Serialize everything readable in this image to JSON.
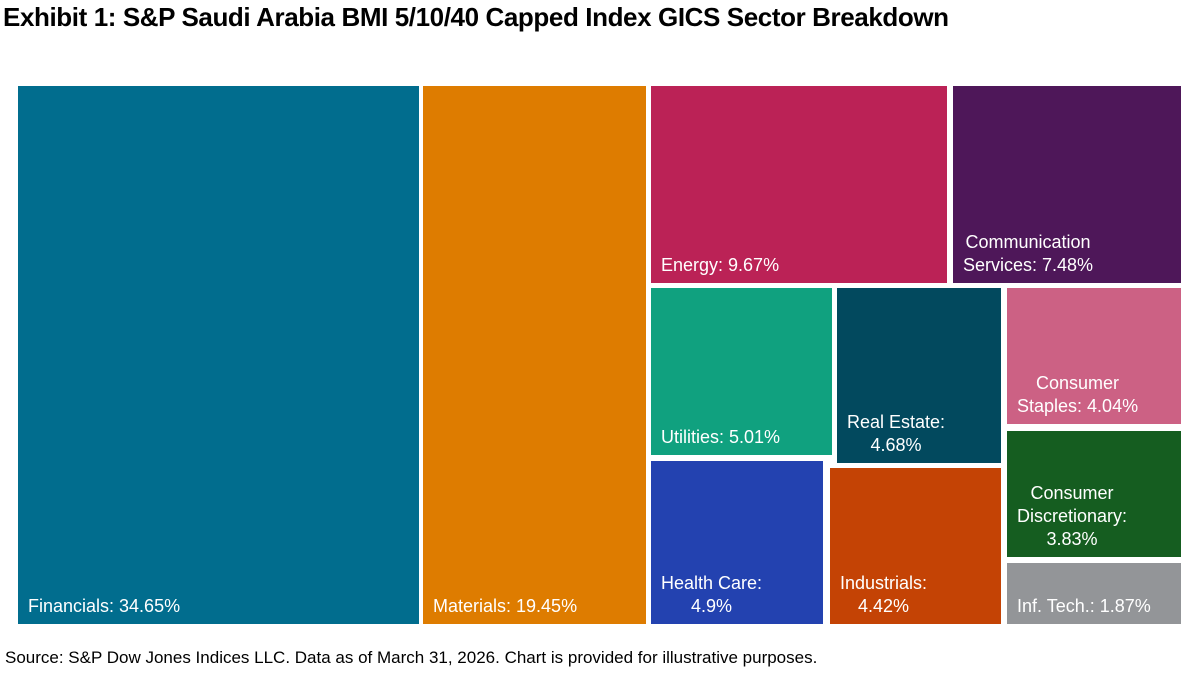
{
  "title": "Exhibit 1: S&P Saudi Arabia BMI 5/10/40 Capped Index GICS Sector Breakdown",
  "source_note": "Source: S&P Dow Jones Indices LLC. Data as of March 31, 2026. Chart is provided for illustrative purposes.",
  "colors": {
    "background": "#FFFFFF",
    "title_text": "#000000",
    "label_text": "#FFFFFF"
  },
  "chart_data": {
    "type": "treemap",
    "title": "Exhibit 1: S&P Saudi Arabia BMI 5/10/40 Capped Index GICS Sector Breakdown",
    "unit": "%",
    "sectors": [
      {
        "id": "financials",
        "name": "Financials",
        "value": 34.65,
        "color": "#016D8E",
        "label": "Financials: 34.65%",
        "label_lines": [
          "Financials: 34.65%"
        ]
      },
      {
        "id": "materials",
        "name": "Materials",
        "value": 19.45,
        "color": "#DE7C00",
        "label": "Materials: 19.45%",
        "label_lines": [
          "Materials: 19.45%"
        ]
      },
      {
        "id": "energy",
        "name": "Energy",
        "value": 9.67,
        "color": "#BB2256",
        "label": "Energy: 9.67%",
        "label_lines": [
          "Energy: 9.67%"
        ]
      },
      {
        "id": "communication_services",
        "name": "Communication Services",
        "value": 7.48,
        "color": "#4E1759",
        "label": "Communication Services: 7.48%",
        "label_lines": [
          "Communication",
          "Services: 7.48%"
        ]
      },
      {
        "id": "utilities",
        "name": "Utilities",
        "value": 5.01,
        "color": "#10A17F",
        "label": "Utilities: 5.01%",
        "label_lines": [
          "Utilities: 5.01%"
        ]
      },
      {
        "id": "real_estate",
        "name": "Real Estate",
        "value": 4.68,
        "color": "#02495E",
        "label": "Real Estate: 4.68%",
        "label_lines": [
          "Real Estate:",
          "4.68%"
        ]
      },
      {
        "id": "consumer_staples",
        "name": "Consumer Staples",
        "value": 4.04,
        "color": "#CC6184",
        "label": "Consumer Staples: 4.04%",
        "label_lines": [
          "Consumer",
          "Staples: 4.04%"
        ]
      },
      {
        "id": "health_care",
        "name": "Health Care",
        "value": 4.9,
        "color": "#2342B0",
        "label": "Health Care: 4.9%",
        "label_lines": [
          "Health Care:",
          "4.9%"
        ]
      },
      {
        "id": "industrials",
        "name": "Industrials",
        "value": 4.42,
        "color": "#C44305",
        "label": "Industrials: 4.42%",
        "label_lines": [
          "Industrials:",
          "4.42%"
        ]
      },
      {
        "id": "consumer_discretionary",
        "name": "Consumer Discretionary",
        "value": 3.83,
        "color": "#155D20",
        "label": "Consumer Discretionary: 3.83%",
        "label_lines": [
          "Consumer",
          "Discretionary:",
          "3.83%"
        ]
      },
      {
        "id": "inf_tech",
        "name": "Inf. Tech.",
        "value": 1.87,
        "color": "#939598",
        "label": "Inf. Tech.: 1.87%",
        "label_lines": [
          "Inf. Tech.: 1.87%"
        ]
      }
    ]
  }
}
